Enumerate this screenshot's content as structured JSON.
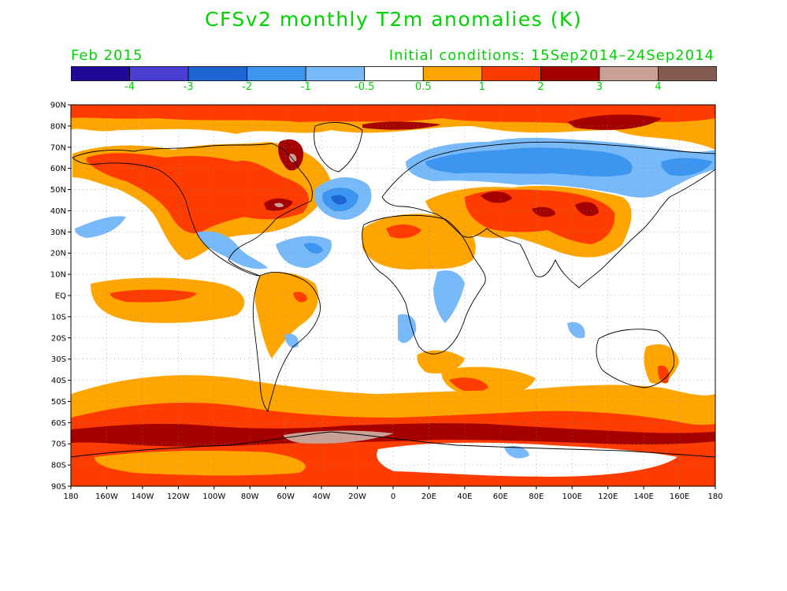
{
  "title": "CFSv2 monthly T2m anomalies (K)",
  "valid_month": "Feb 2015",
  "initial_conditions": "Initial conditions: 15Sep2014–24Sep2014",
  "colorbar": {
    "colors": [
      "#1e0a96",
      "#4b3cd2",
      "#1e64d2",
      "#3c96f0",
      "#78b9fa",
      "#ffffff",
      "#ffa500",
      "#ff3c00",
      "#a50000",
      "#c8a096",
      "#825a50"
    ],
    "labels": [
      "-4",
      "-3",
      "-2",
      "-1",
      "-0.5",
      "0.5",
      "1",
      "2",
      "3",
      "4"
    ]
  },
  "lat_labels": [
    "90N",
    "80N",
    "70N",
    "60N",
    "50N",
    "40N",
    "30N",
    "20N",
    "10N",
    "EQ",
    "10S",
    "20S",
    "30S",
    "40S",
    "50S",
    "60S",
    "70S",
    "80S",
    "90S"
  ],
  "lon_labels": [
    "180",
    "160W",
    "140W",
    "120W",
    "100W",
    "80W",
    "60W",
    "40W",
    "20W",
    "0",
    "20E",
    "40E",
    "60E",
    "80E",
    "100E",
    "120E",
    "140E",
    "160E",
    "180"
  ],
  "colors": {
    "text_green": "#00d200",
    "warm_1": "#ffa500",
    "warm_2": "#ff3c00",
    "warm_3": "#a50000",
    "warm_4": "#c8a096",
    "cool_05": "#78b9fa",
    "cool_1": "#3c96f0",
    "cool_2": "#1e64d2"
  }
}
